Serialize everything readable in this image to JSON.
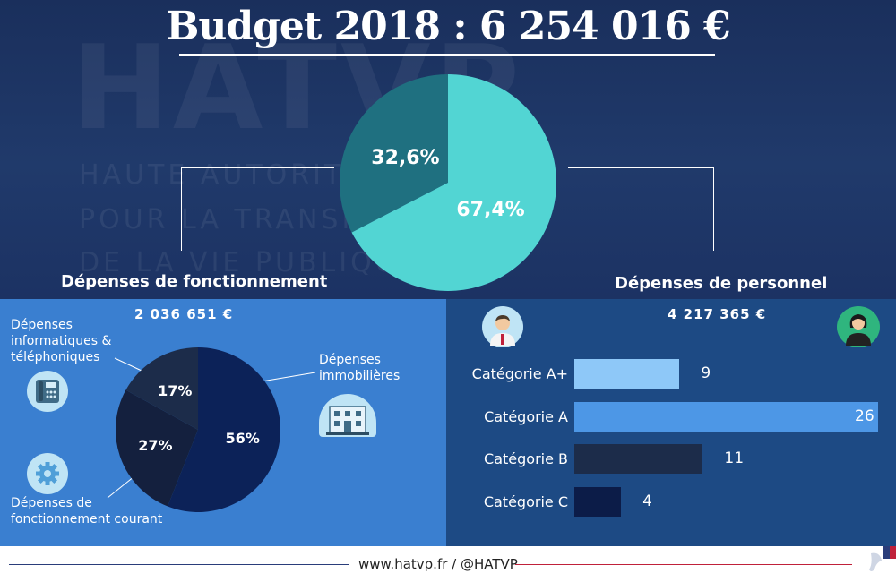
{
  "header": {
    "title": "Budget 2018 : 6 254 016 €",
    "background_lines": [
      "HATVP",
      "HAUTE AUTORITÉ",
      "POUR LA TRANSPARENCE",
      "DE LA VIE PUBLIQUE"
    ]
  },
  "sections": {
    "fonctionnement": {
      "label": "Dépenses de fonctionnement",
      "amount": "2 036 651 €"
    },
    "personnel": {
      "label": "Dépenses de personnel",
      "amount": "4 217 365 €"
    }
  },
  "footer": {
    "text": "www.hatvp.fr / @HATVP"
  },
  "chart_data": [
    {
      "type": "pie",
      "title": "Budget 2018 : 6 254 016 €",
      "slices": [
        {
          "name": "Dépenses de fonctionnement",
          "value": 32.6,
          "label": "32,6%",
          "color": "#1f7080"
        },
        {
          "name": "Dépenses de personnel",
          "value": 67.4,
          "label": "67,4%",
          "color": "#52d5d3"
        }
      ]
    },
    {
      "type": "pie",
      "title": "Dépenses de fonctionnement",
      "slices": [
        {
          "name": "Dépenses immobilières",
          "value": 56,
          "label": "56%",
          "color": "#0c2258"
        },
        {
          "name": "Dépenses de fonctionnement courant",
          "value": 27,
          "label": "27%",
          "color": "#14203e"
        },
        {
          "name": "Dépenses informatiques & téléphoniques",
          "value": 17,
          "label": "17%",
          "color": "#1c2c4a"
        }
      ]
    },
    {
      "type": "bar",
      "orientation": "horizontal",
      "title": "Dépenses de personnel",
      "categories": [
        "Catégorie A+",
        "Catégorie A",
        "Catégorie B",
        "Catégorie C"
      ],
      "values": [
        9,
        26,
        11,
        4
      ],
      "value_labels": [
        "9",
        "26",
        "11",
        "4"
      ],
      "colors": [
        "#8ec8f8",
        "#4d97e6",
        "#1c2c4a",
        "#0c1c48"
      ],
      "xlim": [
        0,
        26
      ]
    }
  ]
}
